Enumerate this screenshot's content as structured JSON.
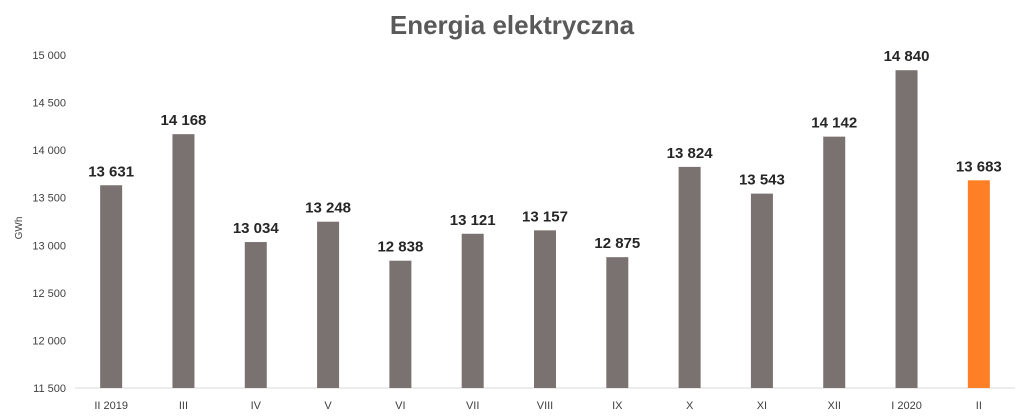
{
  "chart_data": {
    "type": "bar",
    "title": "Energia elektryczna",
    "xlabel": "",
    "ylabel": "GWh",
    "ylim": [
      11500,
      15000
    ],
    "yticks": [
      11500,
      12000,
      12500,
      13000,
      13500,
      14000,
      14500,
      15000
    ],
    "ytick_labels": [
      "11 500",
      "12 000",
      "12 500",
      "13 000",
      "13 500",
      "14 000",
      "14 500",
      "15 000"
    ],
    "categories": [
      "II 2019",
      "III",
      "IV",
      "V",
      "VI",
      "VII",
      "VIII",
      "IX",
      "X",
      "XI",
      "XII",
      "I 2020",
      "II"
    ],
    "values": [
      13631,
      14168,
      13034,
      13248,
      12838,
      13121,
      13157,
      12875,
      13824,
      13543,
      14142,
      14840,
      13683
    ],
    "value_labels": [
      "13 631",
      "14 168",
      "13 034",
      "13 248",
      "12 838",
      "13 121",
      "13 157",
      "12 875",
      "13 824",
      "13 543",
      "14 142",
      "14 840",
      "13 683"
    ],
    "grid": false,
    "legend": "none",
    "colors": {
      "bar": "#7a7270",
      "highlight": "#ff7f27",
      "axis": "#d9d9d9"
    },
    "highlight_index": 12
  }
}
